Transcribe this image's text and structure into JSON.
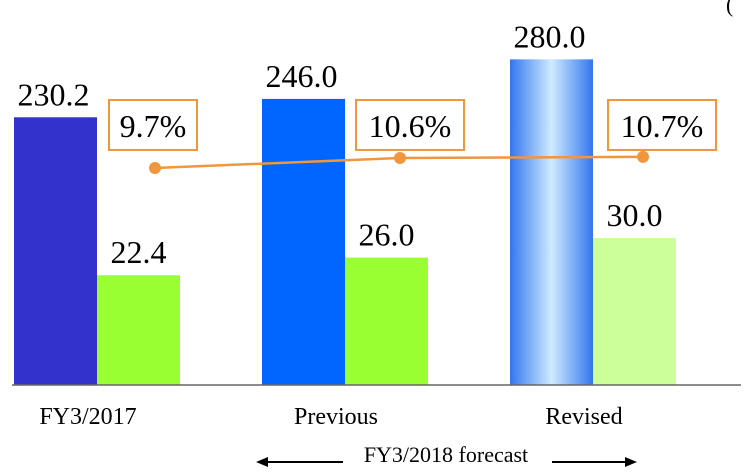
{
  "chart_data": {
    "type": "bar",
    "categories": [
      "FY3/2017",
      "Previous",
      "Revised"
    ],
    "series": [
      {
        "values": [
          230.2,
          246.0,
          280.0
        ],
        "labels": [
          "230.2",
          "246.0",
          "280.0"
        ]
      },
      {
        "values": [
          22.4,
          26.0,
          30.0
        ],
        "labels": [
          "22.4",
          "26.0",
          "30.0"
        ]
      }
    ],
    "line_series": {
      "values": [
        9.7,
        10.6,
        10.7
      ],
      "labels": [
        "9.7%",
        "10.6%",
        "10.7%"
      ]
    },
    "forecast_span_label": "FY3/2018 forecast",
    "header_fragment": "(",
    "ylim": [
      0,
      300
    ],
    "grid": false,
    "colors": {
      "bar1_fy2017": "#3333cc",
      "bar1_previous": "#0066ff",
      "bar1_revised_edge": "#3377ee",
      "bar1_revised_center": "#cfeaff",
      "bar2_solid": "#99ff33",
      "bar2_revised_light": "#ccff99",
      "line": "#f0963c",
      "axis": "#666666"
    }
  }
}
